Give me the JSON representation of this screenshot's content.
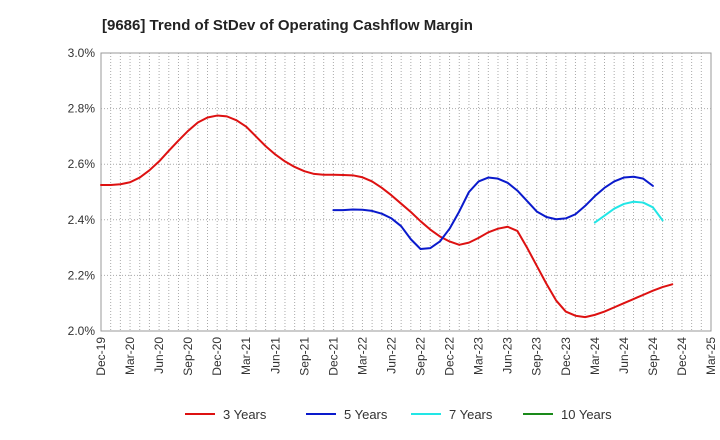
{
  "chart_data": {
    "type": "line",
    "title": "[9686]  Trend of StDev of Operating Cashflow Margin",
    "xlabel": "",
    "ylabel": "",
    "x_tick_labels": [
      "Dec-19",
      "Mar-20",
      "Jun-20",
      "Sep-20",
      "Dec-20",
      "Mar-21",
      "Jun-21",
      "Sep-21",
      "Dec-21",
      "Mar-22",
      "Jun-22",
      "Sep-22",
      "Dec-22",
      "Mar-23",
      "Jun-23",
      "Sep-23",
      "Dec-23",
      "Mar-24",
      "Jun-24",
      "Sep-24",
      "Dec-24",
      "Mar-25"
    ],
    "y_tick_labels": [
      "3.0%",
      "2.8%",
      "2.6%",
      "2.4%",
      "2.2%",
      "2.0%"
    ],
    "ylim": [
      2.0,
      3.0
    ],
    "grid": true,
    "legend_position": "bottom",
    "series": [
      {
        "name": "3 Years",
        "color": "#dd1111",
        "start_index": 0,
        "values": [
          2.525,
          2.525,
          2.528,
          2.535,
          2.552,
          2.578,
          2.61,
          2.648,
          2.685,
          2.72,
          2.75,
          2.768,
          2.775,
          2.772,
          2.758,
          2.735,
          2.7,
          2.665,
          2.635,
          2.61,
          2.59,
          2.575,
          2.565,
          2.562,
          2.562,
          2.561,
          2.56,
          2.553,
          2.538,
          2.515,
          2.488,
          2.458,
          2.428,
          2.395,
          2.365,
          2.34,
          2.322,
          2.31,
          2.318,
          2.335,
          2.355,
          2.368,
          2.375,
          2.36,
          2.3,
          2.235,
          2.17,
          2.11,
          2.07,
          2.055,
          2.05,
          2.058,
          2.07,
          2.085,
          2.1,
          2.115,
          2.13,
          2.145,
          2.158,
          2.168
        ]
      },
      {
        "name": "5 Years",
        "color": "#0a1acc",
        "start_index": 24,
        "values": [
          2.435,
          2.435,
          2.437,
          2.436,
          2.432,
          2.422,
          2.405,
          2.377,
          2.33,
          2.295,
          2.298,
          2.322,
          2.368,
          2.43,
          2.5,
          2.538,
          2.552,
          2.548,
          2.533,
          2.505,
          2.468,
          2.43,
          2.41,
          2.402,
          2.405,
          2.42,
          2.45,
          2.485,
          2.515,
          2.538,
          2.552,
          2.555,
          2.548,
          2.522
        ]
      },
      {
        "name": "7 Years",
        "color": "#22e6e6",
        "start_index": 51,
        "values": [
          2.39,
          2.415,
          2.44,
          2.457,
          2.465,
          2.462,
          2.445,
          2.398
        ]
      },
      {
        "name": "10 Years",
        "color": "#1a8a1a",
        "start_index": 0,
        "values": []
      }
    ]
  }
}
